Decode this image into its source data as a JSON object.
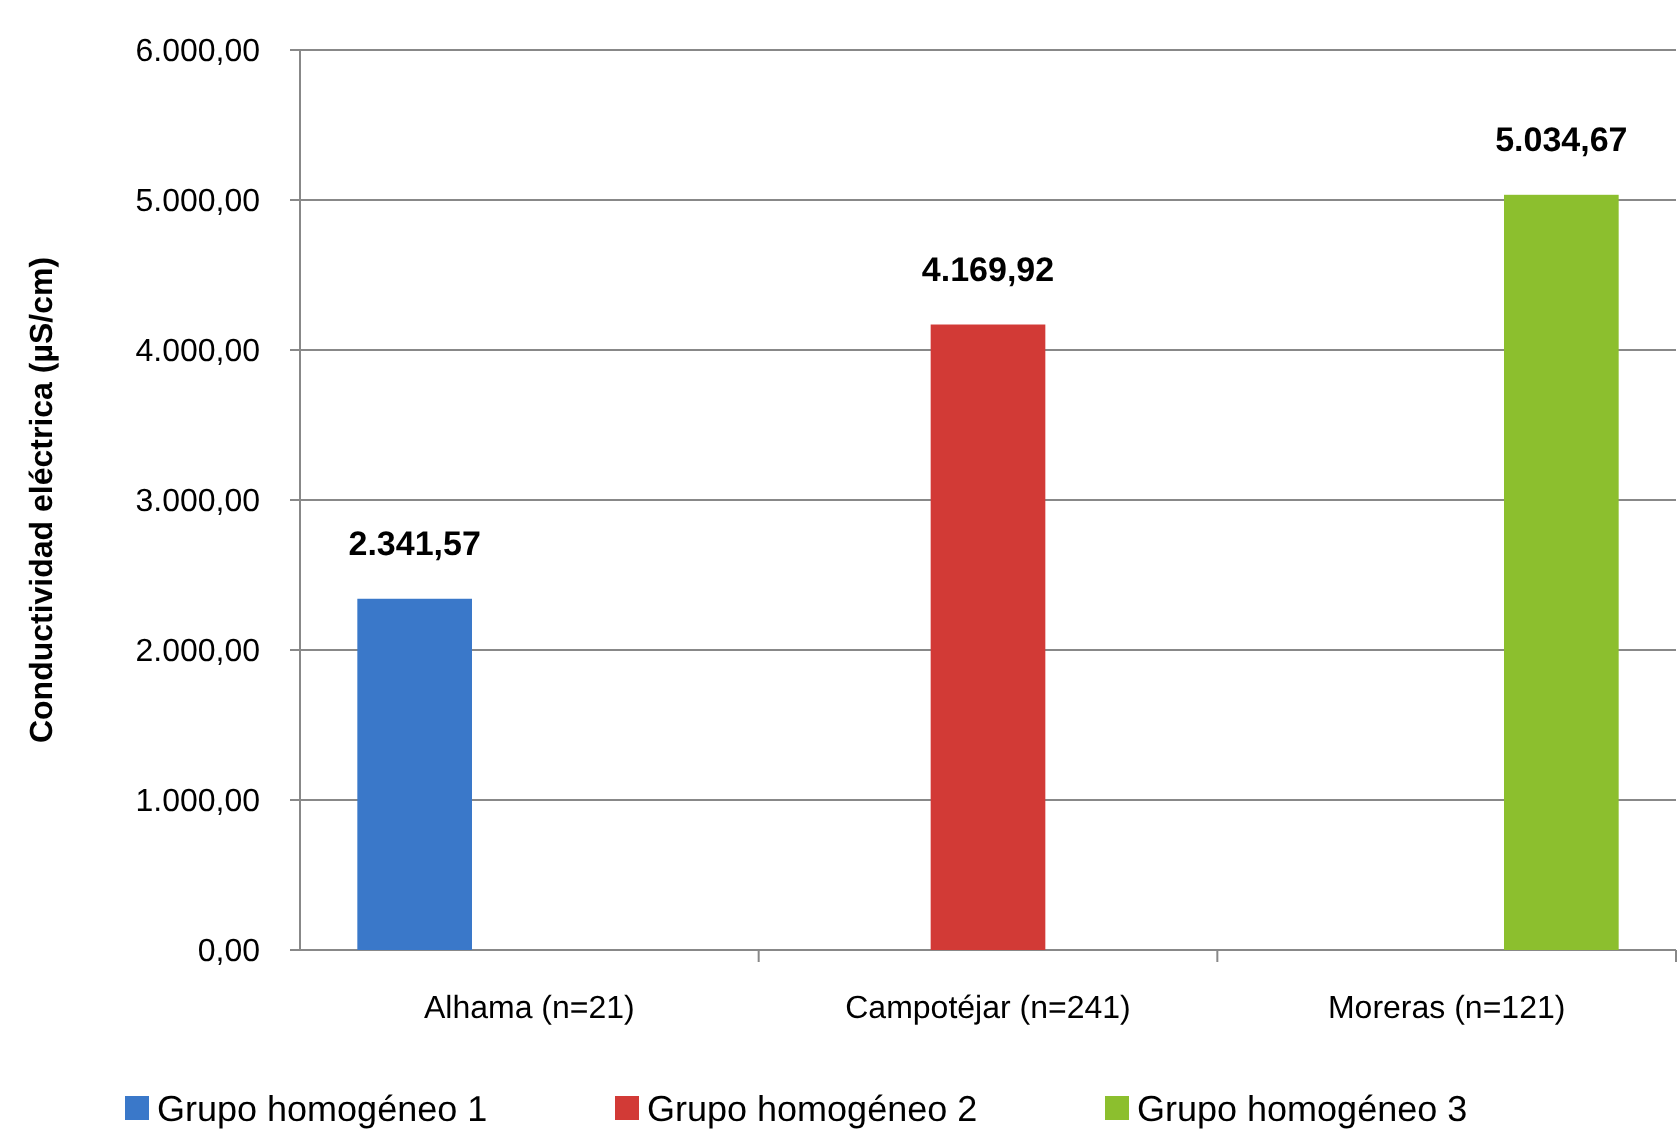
{
  "chart_data": {
    "type": "bar",
    "ylabel": "Conductividad eléctrica (µS/cm)",
    "categories": [
      "Alhama (n=21)",
      "Campotéjar (n=241)",
      "Moreras (n=121)"
    ],
    "series": [
      {
        "name": "Grupo homogéneo 1",
        "color": "#3a78c9",
        "values": [
          2341.57,
          null,
          null
        ],
        "value_labels": [
          "2.341,57",
          null,
          null
        ]
      },
      {
        "name": "Grupo homogéneo 2",
        "color": "#d23a36",
        "values": [
          null,
          4169.92,
          null
        ],
        "value_labels": [
          null,
          "4.169,92",
          null
        ]
      },
      {
        "name": "Grupo homogéneo 3",
        "color": "#8cbf2e",
        "values": [
          null,
          null,
          5034.67
        ],
        "value_labels": [
          null,
          null,
          "5.034,67"
        ]
      }
    ],
    "ylim": [
      0,
      6000
    ],
    "yticks": [
      {
        "value": 0,
        "label": "0,00"
      },
      {
        "value": 1000,
        "label": "1.000,00"
      },
      {
        "value": 2000,
        "label": "2.000,00"
      },
      {
        "value": 3000,
        "label": "3.000,00"
      },
      {
        "value": 4000,
        "label": "4.000,00"
      },
      {
        "value": 5000,
        "label": "5.000,00"
      },
      {
        "value": 6000,
        "label": "6.000,00"
      }
    ],
    "grid": "y",
    "legend": "bottom"
  }
}
